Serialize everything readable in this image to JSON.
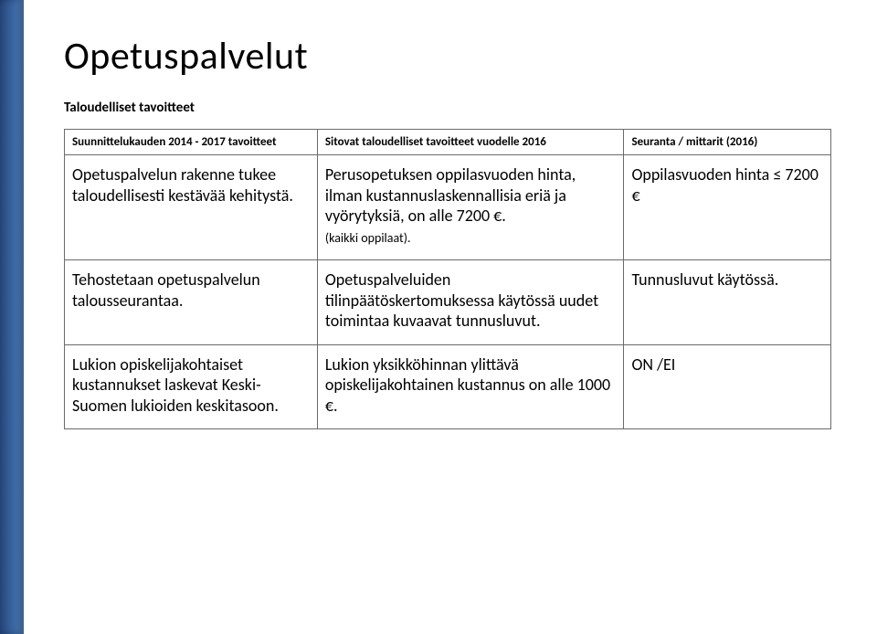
{
  "title": "Opetuspalvelut",
  "subtitle": "Taloudelliset tavoitteet",
  "headers": {
    "col1": "Suunnittelukauden 2014 - 2017 tavoitteet",
    "col2": "Sitovat taloudelliset tavoitteet vuodelle 2016",
    "col3": "Seuranta / mittarit (2016)"
  },
  "rows": [
    {
      "c1": "Opetuspalvelun rakenne tukee taloudellisesti kestävää kehitystä.",
      "c2_main": "Perusopetuksen oppilasvuoden hinta, ilman kustannuslaskennallisia eriä ja vyörytyksiä, on alle 7200 €.",
      "c2_note": "(kaikki oppilaat).",
      "c3": "Oppilasvuoden hinta ≤ 7200 €"
    },
    {
      "c1": "Tehostetaan opetuspalvelun talousseurantaa.",
      "c2_main": "Opetuspalveluiden tilinpäätöskertomuksessa käytössä uudet toimintaa kuvaavat tunnusluvut.",
      "c2_note": "",
      "c3": "Tunnusluvut käytössä."
    },
    {
      "c1": "Lukion opiskelijakohtaiset kustannukset laskevat Keski-Suomen lukioiden keskitasoon.",
      "c2_main": "Lukion yksikköhinnan ylittävä opiskelijakohtainen kustannus on alle 1000 €.",
      "c2_note": "",
      "c3": "ON /EI"
    }
  ]
}
